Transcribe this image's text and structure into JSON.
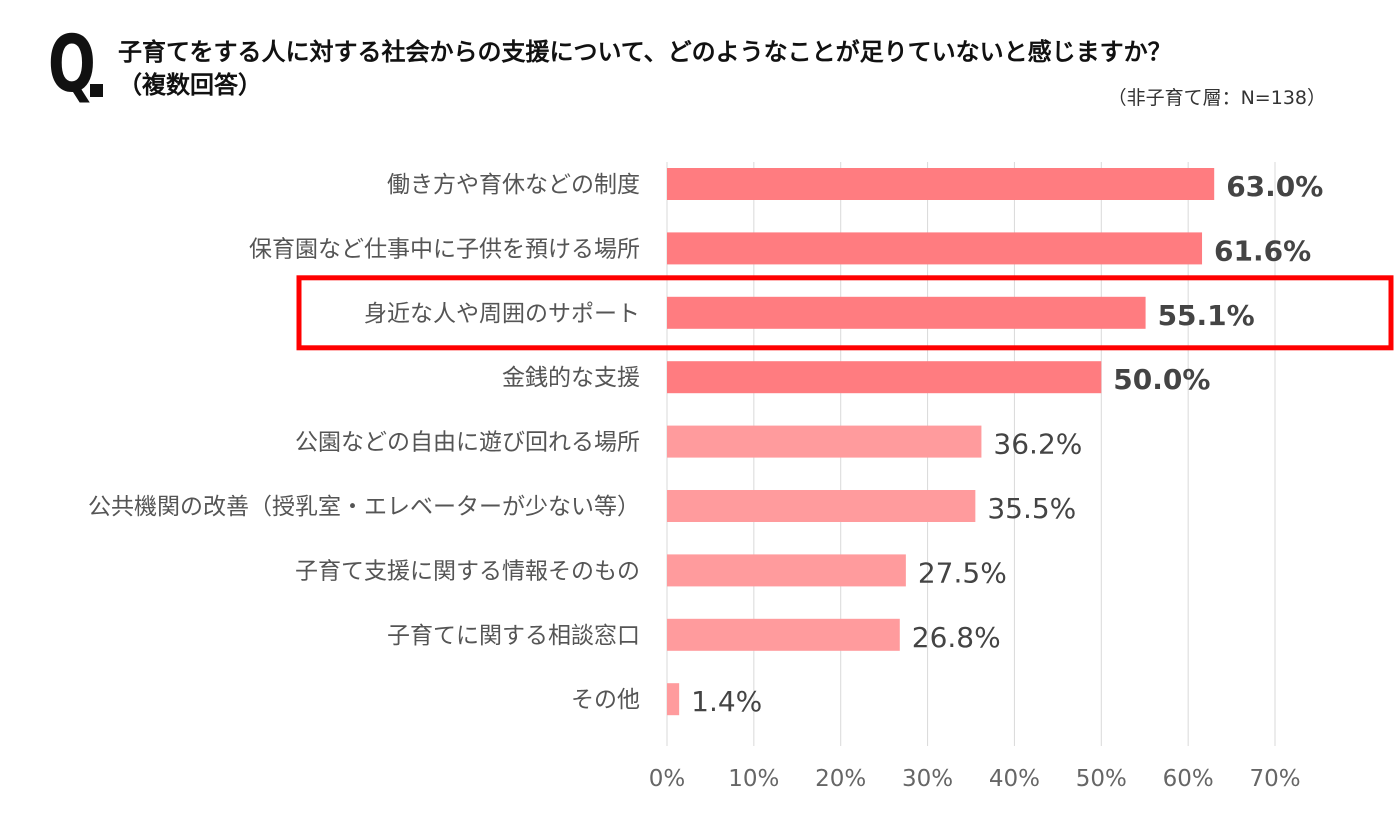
{
  "header": {
    "q_mark": "Q",
    "question": "子育てをする人に対する社会からの支援について、どのようなことが足りていないと感じますか？\n（複数回答）",
    "sample": "（非子育て層：N=138）"
  },
  "colors": {
    "bar_strong": "#ff7c80",
    "bar_light": "#ff9b9d",
    "gridline": "#d9d9d9",
    "highlight_border": "#ff0000",
    "text": "#333333"
  },
  "chart_data": {
    "type": "bar",
    "orientation": "horizontal",
    "categories": [
      "働き方や育休などの制度",
      "保育園など仕事中に子供を預ける場所",
      "身近な人や周囲のサポート",
      "金銭的な支援",
      "公園などの自由に遊び回れる場所",
      "公共機関の改善（授乳室・エレベーターが少ない等）",
      "子育て支援に関する情報そのもの",
      "子育てに関する相談窓口",
      "その他"
    ],
    "values": [
      63.0,
      61.6,
      55.1,
      50.0,
      36.2,
      35.5,
      27.5,
      26.8,
      1.4
    ],
    "value_labels": [
      "63.0%",
      "61.6%",
      "55.1%",
      "50.0%",
      "36.2%",
      "35.5%",
      "27.5%",
      "26.8%",
      "1.4%"
    ],
    "emphasized": [
      true,
      true,
      true,
      true,
      false,
      false,
      false,
      false,
      false
    ],
    "highlighted_category": "身近な人や周囲のサポート",
    "x_ticks": [
      "0%",
      "10%",
      "20%",
      "30%",
      "40%",
      "50%",
      "60%",
      "70%"
    ],
    "xlim": [
      0,
      70
    ],
    "unit": "%",
    "grid": true,
    "legend": "none"
  }
}
